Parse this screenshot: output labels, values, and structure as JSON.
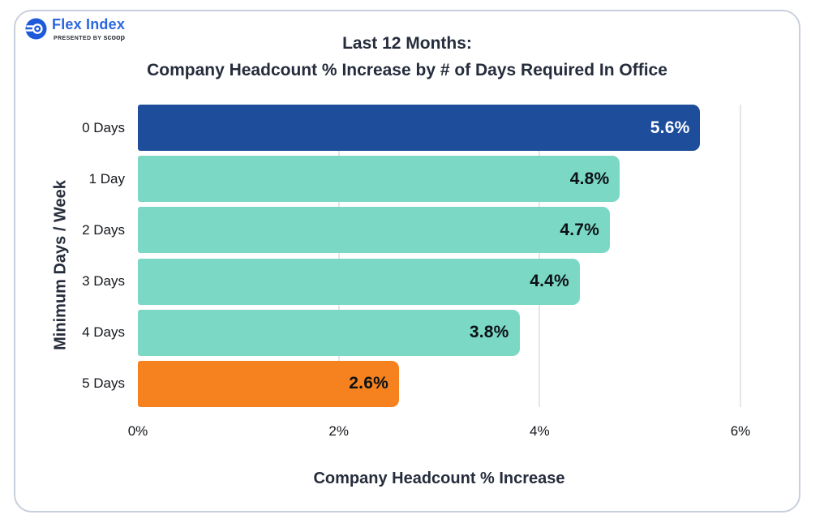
{
  "logo": {
    "brand": "Flex Index",
    "presented_by": "PRESENTED BY",
    "presenter": "scoop",
    "brand_color": "#2a66e0"
  },
  "title": {
    "line1": "Last 12 Months:",
    "line2": "Company Headcount % Increase by # of Days Required In Office"
  },
  "chart_data": {
    "type": "bar",
    "orientation": "horizontal",
    "title": "Last 12 Months: Company Headcount % Increase by # of Days Required In Office",
    "xlabel": "Company Headcount % Increase",
    "ylabel": "Minimum Days / Week",
    "categories": [
      "0 Days",
      "1 Day",
      "2 Days",
      "3 Days",
      "4 Days",
      "5 Days"
    ],
    "values": [
      5.6,
      4.8,
      4.7,
      4.4,
      3.8,
      2.6
    ],
    "value_labels": [
      "5.6%",
      "4.8%",
      "4.7%",
      "4.4%",
      "3.8%",
      "2.6%"
    ],
    "bar_colors": [
      "#1e4d9c",
      "#7bd8c5",
      "#7bd8c5",
      "#7bd8c5",
      "#7bd8c5",
      "#f5821e"
    ],
    "value_label_colors": [
      "#ffffff",
      "#0c1116",
      "#0c1116",
      "#0c1116",
      "#0c1116",
      "#0c1116"
    ],
    "x_ticks": {
      "labels": [
        "0%",
        "2%",
        "4%",
        "6%"
      ],
      "values": [
        0,
        2,
        4,
        6
      ]
    },
    "xlim": [
      0,
      6
    ],
    "grid": true,
    "grid_color": "#e4e6e8",
    "legend_position": "none"
  },
  "style": {
    "card_border_color": "#c9cfdc",
    "background": "#ffffff",
    "title_color": "#252c3b",
    "tick_label_color": "#14171c"
  }
}
